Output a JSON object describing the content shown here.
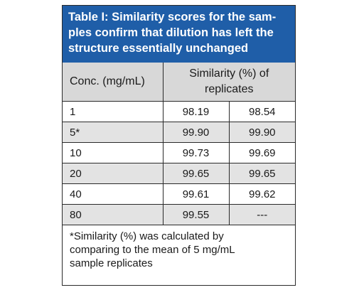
{
  "title": "Table I: Similarity scores for the samples confirm that dilution has left the structure essentially unchanged",
  "title_lines": [
    "Table I: Similarity scores for the sam-",
    "ples confirm that dilution has left the",
    "structure essentially unchanged"
  ],
  "header": {
    "conc_label": "Conc. (mg/mL)",
    "similarity_line1": "Similarity (%) of",
    "similarity_line2": "replicates"
  },
  "rows": [
    {
      "conc": "1",
      "rep1": "98.19",
      "rep2": "98.54"
    },
    {
      "conc": "5*",
      "rep1": "99.90",
      "rep2": "99.90"
    },
    {
      "conc": "10",
      "rep1": "99.73",
      "rep2": "99.69"
    },
    {
      "conc": "20",
      "rep1": "99.65",
      "rep2": "99.65"
    },
    {
      "conc": "40",
      "rep1": "99.61",
      "rep2": "99.62"
    },
    {
      "conc": "80",
      "rep1": "99.55",
      "rep2": "---"
    }
  ],
  "footnote_lines": [
    "*Similarity (%) was calculated by",
    "comparing to the mean of 5 mg/mL",
    "sample replicates"
  ],
  "colors": {
    "title_bg": "#1f5ea8",
    "header_bg": "#d8d8d8",
    "shaded_row_bg": "#e3e3e3"
  }
}
